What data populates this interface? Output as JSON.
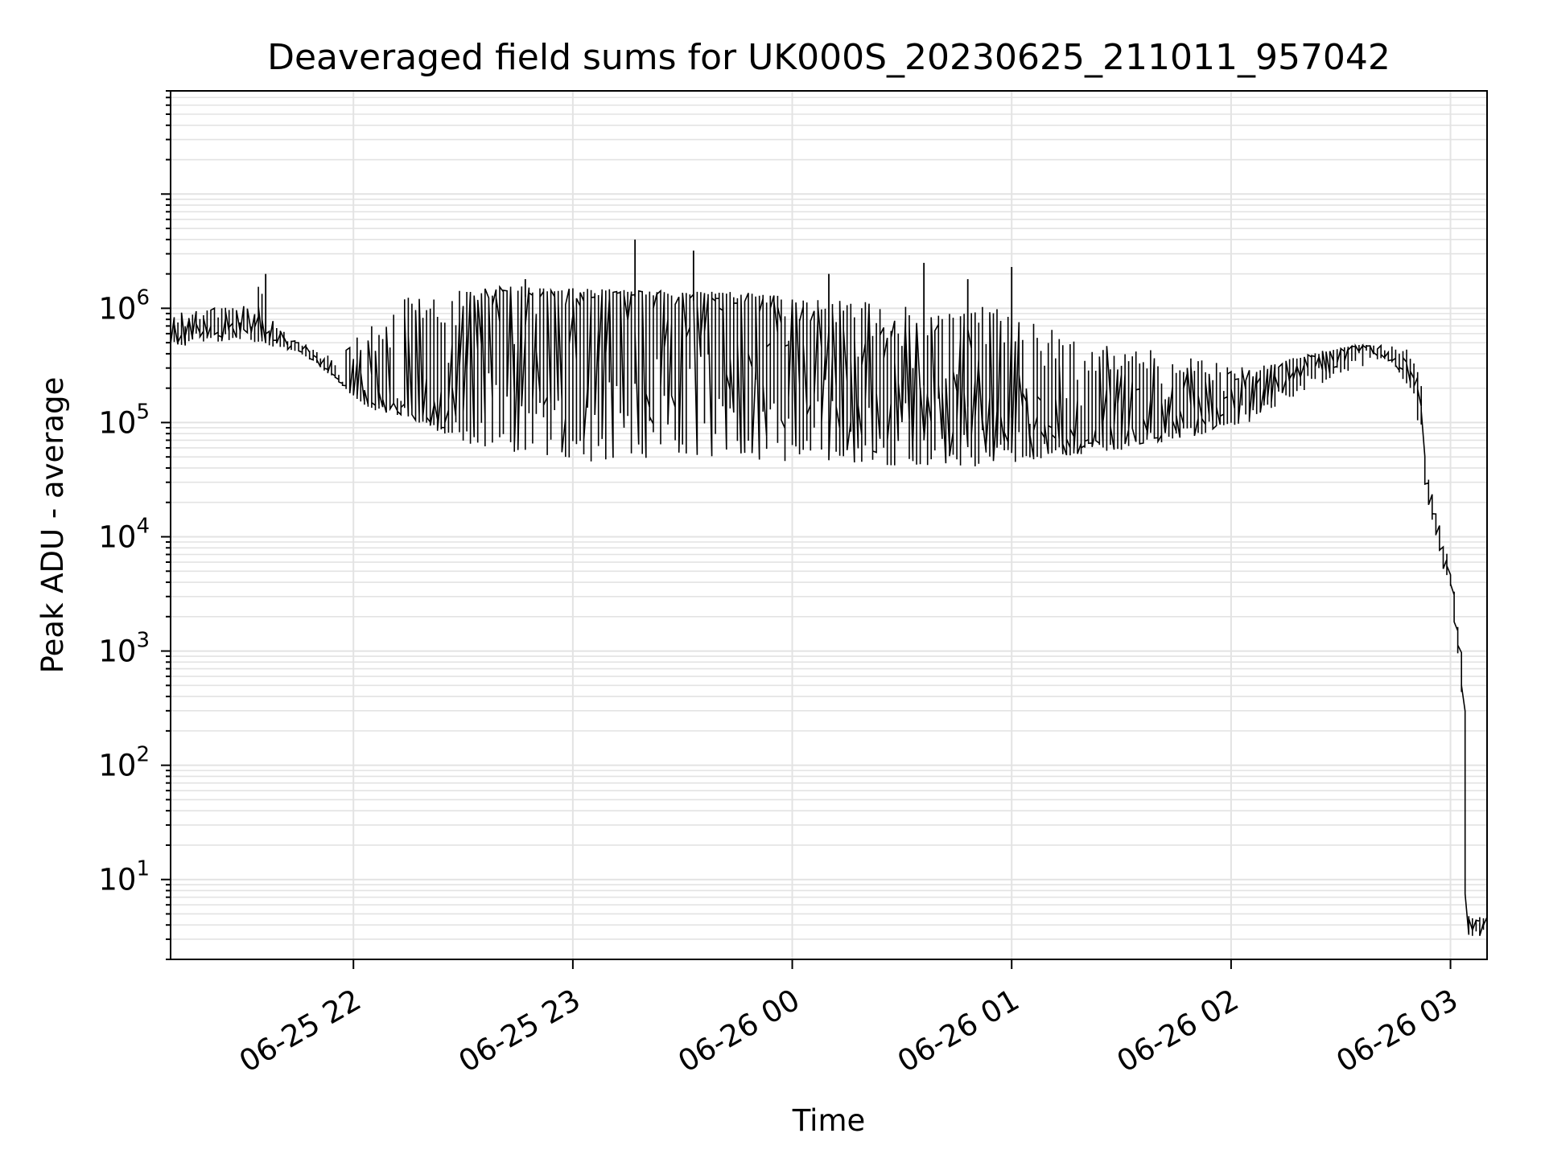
{
  "chart_data": {
    "type": "line",
    "title": "Deaveraged field sums for UK000S_20230625_211011_957042",
    "xlabel": "Time",
    "ylabel": "Peak ADU - average",
    "yscale": "log",
    "ylim": [
      2,
      80000000
    ],
    "xlim": [
      "2023-06-25 21:10",
      "2023-06-26 03:10"
    ],
    "grid": true,
    "line_color": "#000000",
    "grid_color": "#e3e3e3",
    "x_ticks": [
      {
        "value": "2023-06-25 22:00",
        "label": "06-25 22"
      },
      {
        "value": "2023-06-25 23:00",
        "label": "06-25 23"
      },
      {
        "value": "2023-06-26 00:00",
        "label": "06-26 00"
      },
      {
        "value": "2023-06-26 01:00",
        "label": "06-26 01"
      },
      {
        "value": "2023-06-26 02:00",
        "label": "06-26 02"
      },
      {
        "value": "2023-06-26 03:00",
        "label": "06-26 03"
      }
    ],
    "y_ticks": [
      {
        "value": 10,
        "base": "10",
        "exp": "1"
      },
      {
        "value": 100,
        "base": "10",
        "exp": "2"
      },
      {
        "value": 1000,
        "base": "10",
        "exp": "3"
      },
      {
        "value": 10000,
        "base": "10",
        "exp": "4"
      },
      {
        "value": 100000,
        "base": "10",
        "exp": "5"
      },
      {
        "value": 1000000,
        "base": "10",
        "exp": "6"
      }
    ],
    "series": [
      {
        "x": [
          "2023-06-25 21:10",
          "2023-06-25 21:15",
          "2023-06-25 21:20",
          "2023-06-25 21:25",
          "2023-06-25 21:30",
          "2023-06-25 21:34",
          "2023-06-25 21:35",
          "2023-06-25 21:36",
          "2023-06-25 21:40",
          "2023-06-25 21:45",
          "2023-06-25 21:50",
          "2023-06-25 21:55",
          "2023-06-25 22:00",
          "2023-06-25 22:05",
          "2023-06-25 22:10",
          "2023-06-25 22:15",
          "2023-06-25 22:20",
          "2023-06-25 22:25",
          "2023-06-25 22:30",
          "2023-06-25 22:35",
          "2023-06-25 22:40",
          "2023-06-25 22:45",
          "2023-06-25 22:50",
          "2023-06-25 22:55",
          "2023-06-25 23:00",
          "2023-06-25 23:05",
          "2023-06-25 23:10",
          "2023-06-25 23:15",
          "2023-06-25 23:20",
          "2023-06-25 23:25",
          "2023-06-25 23:30",
          "2023-06-25 23:35",
          "2023-06-25 23:40",
          "2023-06-25 23:45",
          "2023-06-25 23:50",
          "2023-06-25 23:55",
          "2023-06-26 00:00",
          "2023-06-26 00:05",
          "2023-06-26 00:10",
          "2023-06-26 00:15",
          "2023-06-26 00:20",
          "2023-06-26 00:25",
          "2023-06-26 00:30",
          "2023-06-26 00:35",
          "2023-06-26 00:40",
          "2023-06-26 00:45",
          "2023-06-26 00:50",
          "2023-06-26 00:55",
          "2023-06-26 01:00",
          "2023-06-26 01:05",
          "2023-06-26 01:10",
          "2023-06-26 01:15",
          "2023-06-26 01:20",
          "2023-06-26 01:25",
          "2023-06-26 01:30",
          "2023-06-26 01:35",
          "2023-06-26 01:40",
          "2023-06-26 01:45",
          "2023-06-26 01:50",
          "2023-06-26 01:55",
          "2023-06-26 02:00",
          "2023-06-26 02:05",
          "2023-06-26 02:10",
          "2023-06-26 02:15",
          "2023-06-26 02:20",
          "2023-06-26 02:25",
          "2023-06-26 02:30",
          "2023-06-26 02:35",
          "2023-06-26 02:40",
          "2023-06-26 02:45",
          "2023-06-26 02:50",
          "2023-06-26 02:53",
          "2023-06-26 02:55",
          "2023-06-26 02:58",
          "2023-06-26 03:00",
          "2023-06-26 03:02",
          "2023-06-26 03:04",
          "2023-06-26 03:05",
          "2023-06-26 03:07",
          "2023-06-26 03:10"
        ],
        "values": [
          600000,
          620000,
          650000,
          700000,
          720000,
          750000,
          2000000,
          520000,
          540000,
          500000,
          380000,
          270000,
          180000,
          160000,
          180000,
          150000,
          120000,
          100000,
          500000,
          900000,
          1200000,
          1300000,
          1200000,
          1100000,
          1000000,
          1100000,
          1200000,
          1300000,
          1200000,
          1200000,
          1000000,
          1300000,
          1200000,
          1100000,
          1000000,
          900000,
          700000,
          600000,
          500000,
          450000,
          400000,
          350000,
          280000,
          220000,
          180000,
          150000,
          130000,
          120000,
          110000,
          100000,
          95000,
          90000,
          85000,
          90000,
          100000,
          110000,
          120000,
          130000,
          140000,
          160000,
          180000,
          200000,
          230000,
          260000,
          320000,
          380000,
          430000,
          470000,
          450000,
          320000,
          180000,
          60000,
          20000,
          8000,
          5000,
          2000,
          400,
          4,
          4,
          4
        ]
      }
    ],
    "envelope": {
      "x": [
        "2023-06-25 21:10",
        "2023-06-25 21:20",
        "2023-06-25 21:30",
        "2023-06-25 21:36",
        "2023-06-25 21:45",
        "2023-06-25 21:55",
        "2023-06-25 22:05",
        "2023-06-25 22:15",
        "2023-06-25 22:25",
        "2023-06-25 22:35",
        "2023-06-25 22:45",
        "2023-06-25 22:55",
        "2023-06-25 23:05",
        "2023-06-25 23:15",
        "2023-06-25 23:25",
        "2023-06-25 23:35",
        "2023-06-25 23:45",
        "2023-06-25 23:55",
        "2023-06-26 00:05",
        "2023-06-26 00:15",
        "2023-06-26 00:25",
        "2023-06-26 00:35",
        "2023-06-26 00:45",
        "2023-06-26 00:55",
        "2023-06-26 01:05",
        "2023-06-26 01:15",
        "2023-06-26 01:25",
        "2023-06-26 01:35",
        "2023-06-26 01:45",
        "2023-06-26 01:55",
        "2023-06-26 02:05",
        "2023-06-26 02:15",
        "2023-06-26 02:25",
        "2023-06-26 02:35",
        "2023-06-26 02:45",
        "2023-06-26 02:53"
      ],
      "high": [
        900000,
        1000000,
        1050000,
        900000,
        500000,
        400000,
        800000,
        1300000,
        1500000,
        1500000,
        1600000,
        1500000,
        1500000,
        1450000,
        1450000,
        1400000,
        1400000,
        1300000,
        1300000,
        1200000,
        1100000,
        1000000,
        900000,
        1200000,
        800000,
        600000,
        500000,
        450000,
        400000,
        350000,
        300000,
        350000,
        420000,
        480000,
        470000,
        400000
      ],
      "low": [
        450000,
        500000,
        520000,
        480000,
        420000,
        250000,
        130000,
        110000,
        80000,
        60000,
        55000,
        50000,
        45000,
        45000,
        48000,
        50000,
        48000,
        46000,
        45000,
        45000,
        42000,
        42000,
        40000,
        42000,
        45000,
        50000,
        55000,
        60000,
        70000,
        80000,
        100000,
        150000,
        220000,
        300000,
        380000,
        200000
      ],
      "spikes": [
        {
          "x": "2023-06-25 21:36",
          "value": 2000000
        },
        {
          "x": "2023-06-25 23:17",
          "value": 4000000
        },
        {
          "x": "2023-06-25 23:33",
          "value": 3200000
        },
        {
          "x": "2023-06-26 00:36",
          "value": 2500000
        },
        {
          "x": "2023-06-26 01:00",
          "value": 2300000
        },
        {
          "x": "2023-06-26 00:48",
          "value": 1800000
        },
        {
          "x": "2023-06-25 22:47",
          "value": 1800000
        },
        {
          "x": "2023-06-26 00:10",
          "value": 2000000
        }
      ]
    }
  }
}
